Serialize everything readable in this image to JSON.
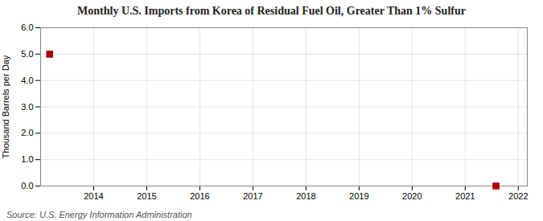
{
  "chart_data": {
    "type": "scatter",
    "title": "Monthly U.S. Imports from Korea of Residual Fuel Oil, Greater Than 1% Sulfur",
    "ylabel": "Thousand Barrels per Day",
    "source": "Source: U.S. Energy Information Administration",
    "x": [
      2013.17,
      2021.58
    ],
    "values": [
      5.0,
      0.0
    ],
    "color": "#aa0000",
    "marker": "square",
    "xlim": [
      2013.0,
      2022.17
    ],
    "xticks": [
      2014,
      2015,
      2016,
      2017,
      2018,
      2019,
      2020,
      2021,
      2022
    ],
    "ylim": [
      0,
      6
    ],
    "yticks": [
      0,
      1,
      2,
      3,
      4,
      5,
      6
    ],
    "grid": true
  }
}
